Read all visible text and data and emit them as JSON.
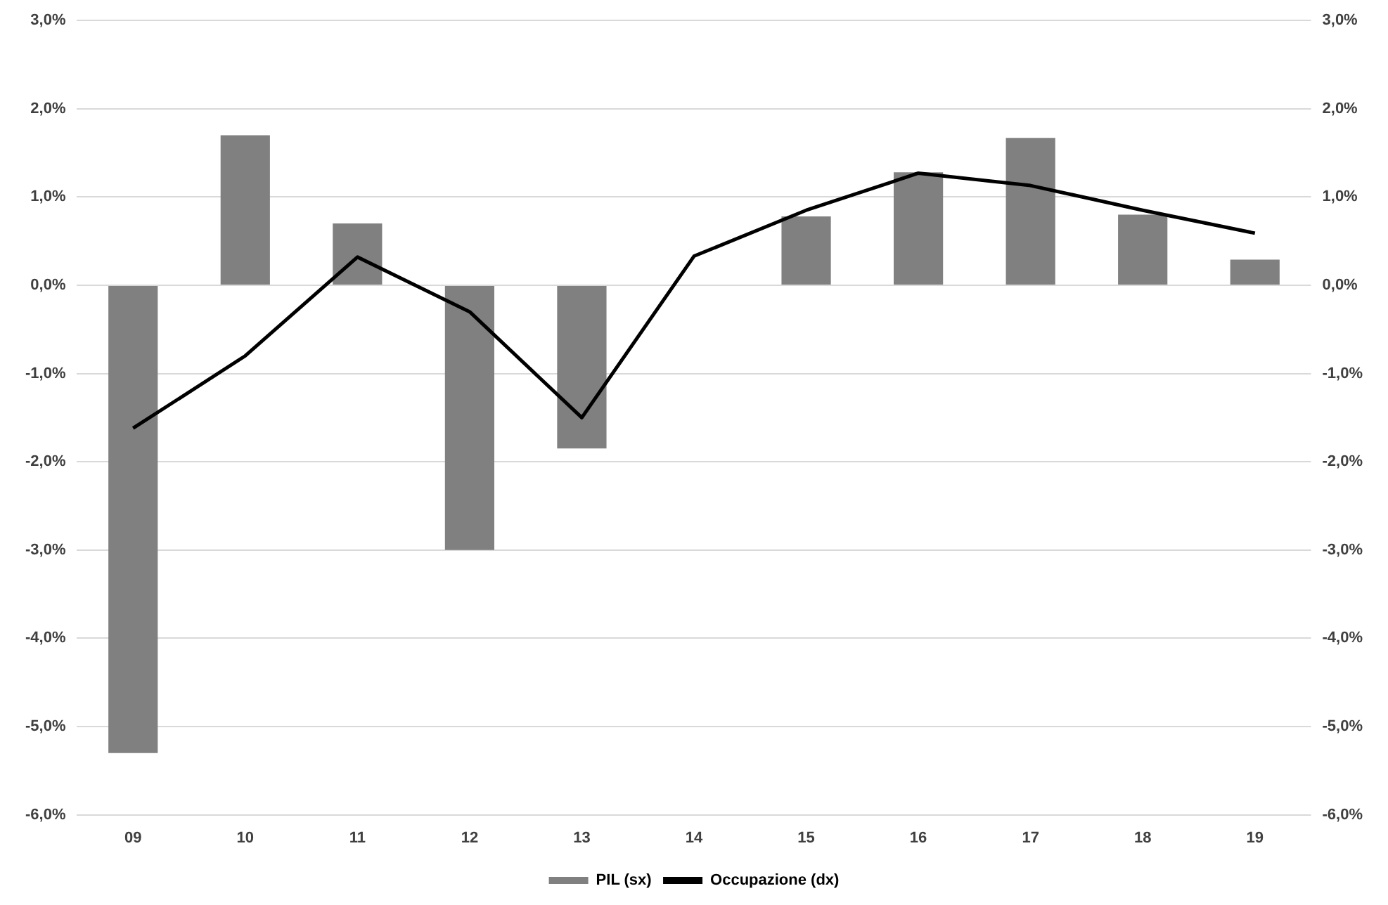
{
  "chart_data": {
    "type": "bar",
    "categories": [
      "09",
      "10",
      "11",
      "12",
      "13",
      "14",
      "15",
      "16",
      "17",
      "18",
      "19"
    ],
    "series": [
      {
        "name": "PIL (sx)",
        "color": "#808080",
        "values": [
          -5.3,
          1.7,
          0.7,
          -3.0,
          -1.85,
          null,
          0.78,
          1.28,
          1.67,
          0.8,
          0.29
        ]
      },
      {
        "name": "Occupazione (dx)",
        "type": "line",
        "axis": "y2",
        "color": "#000000",
        "values": [
          -1.62,
          -0.8,
          0.32,
          -0.3,
          -1.5,
          0.33,
          0.85,
          1.27,
          1.13,
          0.85,
          0.59
        ]
      }
    ],
    "ylim": [
      -6,
      3
    ],
    "yticks": [
      {
        "value": -6,
        "label": "-6,0%"
      },
      {
        "value": -5,
        "label": "-5,0%"
      },
      {
        "value": -4,
        "label": "-4,0%"
      },
      {
        "value": -3,
        "label": "-3,0%"
      },
      {
        "value": -2,
        "label": "-2,0%"
      },
      {
        "value": -1,
        "label": "-1,0%"
      },
      {
        "value": 0,
        "label": "0,0%"
      },
      {
        "value": 1,
        "label": "1,0%"
      },
      {
        "value": 2,
        "label": "2,0%"
      },
      {
        "value": 3,
        "label": "3,0%"
      }
    ],
    "y2lim": [
      -6,
      3
    ],
    "y2ticks": [
      {
        "value": -6,
        "label": "-6,0%"
      },
      {
        "value": -5,
        "label": "-5,0%"
      },
      {
        "value": -4,
        "label": "-4,0%"
      },
      {
        "value": -3,
        "label": "-3,0%"
      },
      {
        "value": -2,
        "label": "-2,0%"
      },
      {
        "value": -1,
        "label": "-1,0%"
      },
      {
        "value": 0,
        "label": "0,0%"
      },
      {
        "value": 1,
        "label": "1,0%"
      },
      {
        "value": 2,
        "label": "2,0%"
      },
      {
        "value": 3,
        "label": "3,0%"
      }
    ],
    "grid": "y",
    "legend": "bottom",
    "marker": "none"
  }
}
